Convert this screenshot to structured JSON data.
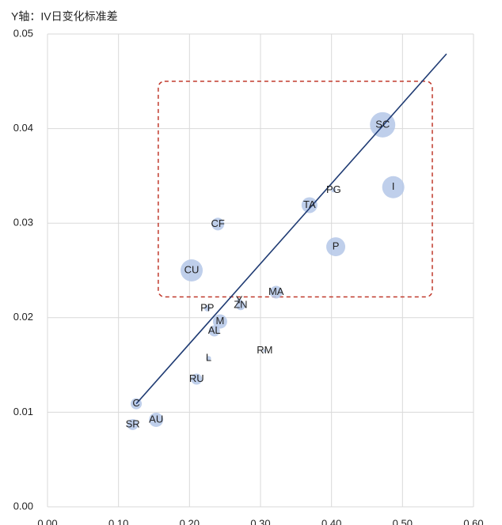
{
  "chart_data": {
    "type": "bubble",
    "y_axis_label": "Y轴：IV日变化标准差",
    "xlim": [
      0,
      0.6
    ],
    "ylim": [
      0,
      0.05
    ],
    "xticks": [
      {
        "value": 0,
        "label": "0.00"
      },
      {
        "value": 0.1,
        "label": "0.10"
      },
      {
        "value": 0.2,
        "label": "0.20"
      },
      {
        "value": 0.3,
        "label": "0.30"
      },
      {
        "value": 0.4,
        "label": "0.40"
      },
      {
        "value": 0.5,
        "label": "0.50"
      },
      {
        "value": 0.6,
        "label": "0.60"
      }
    ],
    "yticks": [
      {
        "value": 0,
        "label": "0.00"
      },
      {
        "value": 0.01,
        "label": "0.01"
      },
      {
        "value": 0.02,
        "label": "0.02"
      },
      {
        "value": 0.03,
        "label": "0.03"
      },
      {
        "value": 0.04,
        "label": "0.04"
      },
      {
        "value": 0.05,
        "label": "0.05"
      }
    ],
    "grid": true,
    "color": "#b4c7e7",
    "labels": [
      "SC",
      "I",
      "PG",
      "TA",
      "P",
      "CF",
      "CU",
      "MA",
      "PP",
      "Y",
      "ZN",
      "M",
      "AL",
      "L",
      "RM",
      "RU",
      "C",
      "AU",
      "SR"
    ],
    "x": [
      0.472,
      0.487,
      0.403,
      0.369,
      0.406,
      0.24,
      0.203,
      0.322,
      0.225,
      0.27,
      0.272,
      0.243,
      0.235,
      0.227,
      0.306,
      0.21,
      0.125,
      0.153,
      0.12
    ],
    "y": [
      0.0404,
      0.0338,
      0.0335,
      0.0319,
      0.0275,
      0.0299,
      0.025,
      0.0227,
      0.021,
      0.0218,
      0.0213,
      0.0196,
      0.0186,
      0.0157,
      0.0165,
      0.0135,
      0.0109,
      0.0092,
      0.0087
    ],
    "sizes": [
      16,
      14,
      3,
      10,
      12,
      8,
      14,
      8,
      4,
      3,
      6,
      9,
      7,
      3,
      2,
      7,
      7,
      9,
      7
    ],
    "trendline": {
      "color": "#1f3b73",
      "x": [
        0.125,
        0.562
      ],
      "y": [
        0.0109,
        0.0479
      ]
    },
    "highlight_box": {
      "color": "#c0392b",
      "x": [
        0.156,
        0.542
      ],
      "y": [
        0.0222,
        0.045
      ]
    }
  }
}
